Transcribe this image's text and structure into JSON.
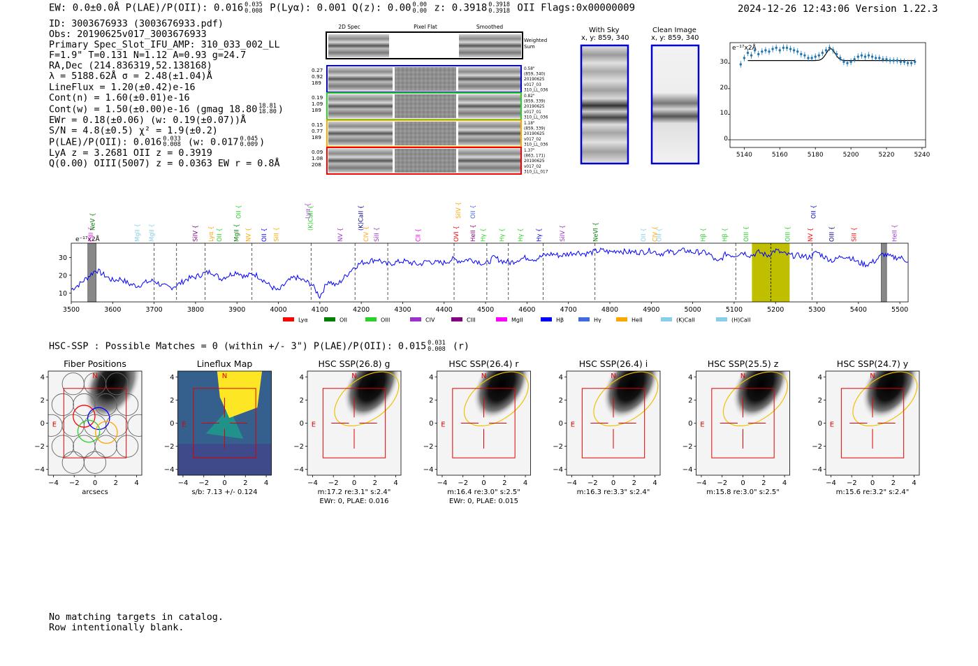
{
  "header": {
    "left": "EW: 0.0±0.0Å  P(LAE)/P(OII): 0.016",
    "plae_hi": "0.035",
    "plae_lo": "0.008",
    "plya": "P(Lyα): 0.001  Q(z): 0.00",
    "qz_hi": "0.00",
    "qz_lo": "0.00",
    "z": "z: 0.3918",
    "z_hi": "0.3918",
    "z_lo": "0.3918",
    "z_tail": "OII    Flags:0x00000009",
    "right": "2024-12-26 12:43:06  Version 1.22.3"
  },
  "info": {
    "l1": "ID: 3003676933 (3003676933.pdf)",
    "l2": "Obs: 20190625v017_3003676933",
    "l3": "Primary Spec_Slot_IFU_AMP: 310_033_002_LL",
    "l4": "F=1.9\"  T=0.131  N=1.12  A=0.93  g=24.7",
    "l5": "RA,Dec (214.836319,52.138168)",
    "l6": "λ = 5188.62Å  σ = 2.48(±1.04)Å",
    "l7": "LineFlux = 1.20(±0.42)e-16",
    "l8": "Cont(n) = 1.60(±0.01)e-16",
    "l9": "Cont(w) = 1.50(±0.00)e-16 (gmag 18.80",
    "l9_hi": "18.81",
    "l9_lo": "18.80",
    "l9_tail": ")",
    "l10": "EWr = 0.18(±0.06) (w: 0.19(±0.07))Å",
    "l11": "S/N = 4.8(±0.5)  χ² = 1.9(±0.2)",
    "l12": "P(LAE)/P(OII): 0.016",
    "l12_hi": "0.033",
    "l12_lo": "0.008",
    "l12_mid": "(w: 0.017",
    "l12_hi2": "0.045",
    "l12_lo2": "0.009",
    "l12_tail": ")",
    "l13": "LyA z = 3.2681  OII z = 0.3919",
    "l14": "Q(0.00) OIII(5007) z = 0.0363  EW r = 0.8Å"
  },
  "cutouts": {
    "col1": "2D Spec",
    "col2": "Pixel Flat",
    "col3": "Smoothed",
    "weighted": "Weighted Sum",
    "rows": [
      {
        "left": [
          "0.27",
          "0.92",
          "189"
        ],
        "right": [
          "0.58\"",
          "(859, 340)",
          "20190625",
          "v017_03",
          "310_LL_036"
        ],
        "color": "#0000ff"
      },
      {
        "left": [
          "0.19",
          "1.09",
          "189"
        ],
        "right": [
          "0.82\"",
          "(859, 339)",
          "20190625",
          "v017_01",
          "310_LL_036"
        ],
        "color": "#2ad12a"
      },
      {
        "left": [
          "0.15",
          "0.77",
          "189"
        ],
        "right": [
          "1.18\"",
          "(859, 339)",
          "20190625",
          "v017_02",
          "310_LL_036"
        ],
        "color": "#ffa500"
      },
      {
        "left": [
          "0.09",
          "1.08",
          "208"
        ],
        "right": [
          "1.37\"",
          "(863, 171)",
          "20190625",
          "v017_02",
          "310_LL_017"
        ],
        "color": "#ff0000"
      }
    ],
    "with_sky": "With Sky",
    "with_sky_xy": "x, y: 859, 340",
    "clean": "Clean Image",
    "clean_xy": "x, y: 859, 340"
  },
  "zoom_chart": {
    "type": "scatter",
    "units_label": "e⁻¹⁷x2Å",
    "x": [
      5138,
      5140,
      5142,
      5144,
      5146,
      5148,
      5150,
      5152,
      5154,
      5156,
      5158,
      5160,
      5162,
      5164,
      5166,
      5168,
      5170,
      5172,
      5174,
      5176,
      5178,
      5180,
      5182,
      5184,
      5186,
      5188,
      5190,
      5192,
      5194,
      5196,
      5198,
      5200,
      5202,
      5204,
      5206,
      5208,
      5210,
      5212,
      5214,
      5216,
      5218,
      5220,
      5222,
      5224,
      5226,
      5228,
      5230,
      5232,
      5234,
      5236
    ],
    "y": [
      29.5,
      32,
      34,
      33,
      35,
      33.5,
      34.5,
      35,
      34.5,
      35.5,
      36,
      35,
      36,
      36,
      35.5,
      35,
      34.5,
      33.5,
      33,
      32,
      32,
      32.5,
      33,
      34,
      35,
      36,
      35,
      33.5,
      32,
      30.5,
      30,
      30.5,
      31.5,
      32.5,
      33,
      32.5,
      33,
      32.5,
      32,
      32,
      31.5,
      31.5,
      31,
      31,
      31,
      30.5,
      30.5,
      30,
      30,
      30.5
    ],
    "fit_base": 31,
    "fit_peak": 35.6,
    "fit_center": 5188.6,
    "fit_sigma": 2.5,
    "xticks": [
      5140,
      5160,
      5180,
      5200,
      5220,
      5240
    ],
    "yticks": [
      0,
      10,
      20,
      30
    ],
    "xlim": [
      5132,
      5242
    ],
    "ylim": [
      -3,
      38
    ]
  },
  "spectrum": {
    "type": "line",
    "units_label": "e⁻¹⁷x2Å",
    "xlim": [
      3500,
      5520
    ],
    "ylim": [
      5,
      38
    ],
    "xticks": [
      3500,
      3600,
      3700,
      3800,
      3900,
      4000,
      4100,
      4200,
      4300,
      4400,
      4500,
      4600,
      4700,
      4800,
      4900,
      5000,
      5100,
      5200,
      5300,
      5400,
      5500
    ],
    "yticks": [
      10,
      20,
      30
    ],
    "highlight": [
      5143,
      5234
    ],
    "line_center": 5188.6,
    "masked": [
      [
        3540,
        3560
      ],
      [
        5455,
        5468
      ]
    ],
    "dashed_lines": [
      3700,
      3754,
      3823,
      3936,
      4079,
      4185,
      4264,
      4424,
      4503,
      4555,
      4639,
      4764,
      5104,
      5288
    ],
    "anchors": [
      [
        3500,
        12
      ],
      [
        3520,
        15
      ],
      [
        3540,
        19
      ],
      [
        3560,
        23
      ],
      [
        3580,
        20
      ],
      [
        3600,
        17
      ],
      [
        3620,
        18
      ],
      [
        3640,
        15
      ],
      [
        3660,
        14
      ],
      [
        3680,
        16
      ],
      [
        3700,
        17
      ],
      [
        3720,
        14
      ],
      [
        3740,
        13
      ],
      [
        3760,
        15
      ],
      [
        3780,
        18
      ],
      [
        3800,
        19
      ],
      [
        3820,
        21
      ],
      [
        3840,
        22
      ],
      [
        3860,
        18
      ],
      [
        3880,
        20
      ],
      [
        3900,
        22
      ],
      [
        3920,
        19
      ],
      [
        3940,
        21
      ],
      [
        3960,
        18
      ],
      [
        3980,
        14
      ],
      [
        4000,
        11
      ],
      [
        4020,
        16
      ],
      [
        4040,
        19
      ],
      [
        4060,
        17
      ],
      [
        4080,
        15
      ],
      [
        4100,
        8
      ],
      [
        4120,
        17
      ],
      [
        4140,
        14
      ],
      [
        4160,
        19
      ],
      [
        4180,
        24
      ],
      [
        4200,
        27
      ],
      [
        4220,
        28
      ],
      [
        4240,
        29
      ],
      [
        4260,
        26
      ],
      [
        4280,
        27
      ],
      [
        4300,
        28
      ],
      [
        4320,
        27
      ],
      [
        4340,
        26
      ],
      [
        4360,
        28
      ],
      [
        4380,
        27
      ],
      [
        4400,
        27
      ],
      [
        4420,
        29
      ],
      [
        4440,
        28
      ],
      [
        4460,
        29
      ],
      [
        4480,
        28
      ],
      [
        4500,
        26
      ],
      [
        4520,
        30
      ],
      [
        4540,
        28
      ],
      [
        4560,
        27
      ],
      [
        4580,
        29
      ],
      [
        4600,
        30
      ],
      [
        4620,
        29
      ],
      [
        4640,
        31
      ],
      [
        4660,
        32
      ],
      [
        4680,
        31
      ],
      [
        4700,
        32
      ],
      [
        4720,
        33
      ],
      [
        4740,
        32
      ],
      [
        4760,
        33
      ],
      [
        4780,
        34
      ],
      [
        4800,
        33
      ],
      [
        4820,
        34
      ],
      [
        4840,
        33
      ],
      [
        4860,
        33
      ],
      [
        4880,
        33
      ],
      [
        4900,
        34
      ],
      [
        4920,
        32
      ],
      [
        4940,
        33
      ],
      [
        4960,
        33
      ],
      [
        4980,
        34
      ],
      [
        5000,
        33
      ],
      [
        5020,
        33
      ],
      [
        5040,
        32
      ],
      [
        5060,
        27
      ],
      [
        5080,
        32
      ],
      [
        5100,
        31
      ],
      [
        5120,
        33
      ],
      [
        5140,
        31
      ],
      [
        5160,
        33
      ],
      [
        5180,
        31
      ],
      [
        5200,
        34
      ],
      [
        5220,
        32
      ],
      [
        5240,
        31
      ],
      [
        5260,
        31
      ],
      [
        5280,
        30
      ],
      [
        5300,
        33
      ],
      [
        5320,
        30
      ],
      [
        5340,
        28
      ],
      [
        5360,
        31
      ],
      [
        5380,
        30
      ],
      [
        5400,
        27
      ],
      [
        5420,
        26
      ],
      [
        5440,
        28
      ],
      [
        5460,
        32
      ],
      [
        5480,
        30
      ],
      [
        5500,
        30
      ],
      [
        5520,
        28
      ]
    ],
    "line_labels": [
      {
        "name": "CIII",
        "x": 3548,
        "color": "#ff00ff",
        "row": 2
      },
      {
        "name": "NeV",
        "x": 3552,
        "color": "#008000",
        "row": 1
      },
      {
        "name": "MgII",
        "x": 3660,
        "color": "#87ceeb",
        "row": 2
      },
      {
        "name": "MgII",
        "x": 3695,
        "color": "#87ceeb",
        "row": 2
      },
      {
        "name": "SiIV",
        "x": 3800,
        "color": "#800080",
        "row": 2
      },
      {
        "name": "Lyα",
        "x": 3838,
        "color": "#ffa500",
        "row": 2
      },
      {
        "name": "OII",
        "x": 3858,
        "color": "#2ad12a",
        "row": 2
      },
      {
        "name": "MgII",
        "x": 3900,
        "color": "#008000",
        "row": 2
      },
      {
        "name": "OII",
        "x": 3905,
        "color": "#2ad12a",
        "row": 0
      },
      {
        "name": "NV",
        "x": 3928,
        "color": "#ffa500",
        "row": 2
      },
      {
        "name": "OII",
        "x": 3966,
        "color": "#0000ff",
        "row": 2
      },
      {
        "name": "SiII",
        "x": 3996,
        "color": "#ffa500",
        "row": 2
      },
      {
        "name": "Lyα",
        "x": 4072,
        "color": "#9933cc",
        "row": 0
      },
      {
        "name": "(K)CaII",
        "x": 4078,
        "color": "#2ad12a",
        "row": 1
      },
      {
        "name": "NV",
        "x": 4150,
        "color": "#9933cc",
        "row": 2
      },
      {
        "name": "(K)CaII",
        "x": 4200,
        "color": "#00008b",
        "row": 1
      },
      {
        "name": "CIV",
        "x": 4212,
        "color": "#ffa500",
        "row": 2
      },
      {
        "name": "SiII",
        "x": 4238,
        "color": "#9933cc",
        "row": 2
      },
      {
        "name": "CII",
        "x": 4338,
        "color": "#ff00ff",
        "row": 2
      },
      {
        "name": "OVI",
        "x": 4430,
        "color": "#ff0000",
        "row": 2
      },
      {
        "name": "SiIV",
        "x": 4435,
        "color": "#ffa500",
        "row": 0
      },
      {
        "name": "OII",
        "x": 4470,
        "color": "#4169e1",
        "row": 0
      },
      {
        "name": "HeII",
        "x": 4470,
        "color": "#800080",
        "row": 2
      },
      {
        "name": "Hγ",
        "x": 4495,
        "color": "#2ad12a",
        "row": 2
      },
      {
        "name": "Hγ",
        "x": 4540,
        "color": "#2ad12a",
        "row": 2
      },
      {
        "name": "Hγ",
        "x": 4585,
        "color": "#2ad12a",
        "row": 2
      },
      {
        "name": "Hγ",
        "x": 4630,
        "color": "#0000cd",
        "row": 2
      },
      {
        "name": "SiIV",
        "x": 4686,
        "color": "#9933cc",
        "row": 2
      },
      {
        "name": "NeVI",
        "x": 4766,
        "color": "#008000",
        "row": 2
      },
      {
        "name": "OII",
        "x": 4882,
        "color": "#87ceeb",
        "row": 2
      },
      {
        "name": "CIV",
        "x": 4910,
        "color": "#ffa500",
        "row": 2
      },
      {
        "name": "OII",
        "x": 4920,
        "color": "#87ceeb",
        "row": 2
      },
      {
        "name": "Hβ",
        "x": 5026,
        "color": "#2ad12a",
        "row": 2
      },
      {
        "name": "Hβ",
        "x": 5078,
        "color": "#2ad12a",
        "row": 2
      },
      {
        "name": "OIII",
        "x": 5130,
        "color": "#2ad12a",
        "row": 2
      },
      {
        "name": "OIII",
        "x": 5230,
        "color": "#2ad12a",
        "row": 2
      },
      {
        "name": "NV",
        "x": 5285,
        "color": "#ff0000",
        "row": 2
      },
      {
        "name": "OII",
        "x": 5292,
        "color": "#0000cd",
        "row": 0
      },
      {
        "name": "OIII",
        "x": 5336,
        "color": "#00008b",
        "row": 2
      },
      {
        "name": "SiII",
        "x": 5390,
        "color": "#ff0000",
        "row": 2
      },
      {
        "name": "HeII",
        "x": 5488,
        "color": "#9933cc",
        "row": 2
      }
    ],
    "legend": [
      {
        "label": "Lyα",
        "color": "#ff0000"
      },
      {
        "label": "OII",
        "color": "#008000"
      },
      {
        "label": "OIII",
        "color": "#2ad12a"
      },
      {
        "label": "CIV",
        "color": "#9933cc"
      },
      {
        "label": "CIII",
        "color": "#800080"
      },
      {
        "label": "MgII",
        "color": "#ff00ff"
      },
      {
        "label": "Hβ",
        "color": "#0000ff"
      },
      {
        "label": "Hγ",
        "color": "#4169e1"
      },
      {
        "label": "HeII",
        "color": "#ffa500"
      },
      {
        "label": "(K)CaII",
        "color": "#87ceeb"
      },
      {
        "label": "(H)CaII",
        "color": "#87ceeb"
      }
    ]
  },
  "hsc": {
    "line": "HSC-SSP : Possible Matches = 0 (within +/- 3\")  P(LAE)/P(OII): 0.015",
    "hi": "0.031",
    "lo": "0.008",
    "tail": "(r)",
    "ticks": [
      "−4",
      "−2",
      "0",
      "2",
      "4"
    ],
    "panels": [
      {
        "title": "Fiber Positions",
        "kind": "fiber",
        "cap1": "arcsecs",
        "cap2": ""
      },
      {
        "title": "Lineflux Map",
        "kind": "flux",
        "cap1": "s/b: 7.13 +/- 0.124",
        "cap2": ""
      },
      {
        "title": "HSC SSP(26.8) g",
        "kind": "img",
        "cap1": "m:17.2  re:3.1\"  s:2.4\"",
        "cap2": "EWr: 0, PLAE: 0.016"
      },
      {
        "title": "HSC SSP(26.4) r",
        "kind": "img",
        "cap1": "m:16.4  re:3.0\"  s:2.5\"",
        "cap2": "EWr: 0, PLAE: 0.015"
      },
      {
        "title": "HSC SSP(26.4) i",
        "kind": "img",
        "cap1": "m:16.3  re:3.3\"  s:2.4\"",
        "cap2": ""
      },
      {
        "title": "HSC SSP(25.5) z",
        "kind": "img",
        "cap1": "m:15.8  re:3.0\"  s:2.5\"",
        "cap2": ""
      },
      {
        "title": "HSC SSP(24.7) y",
        "kind": "img",
        "cap1": "m:15.6  re:3.2\"  s:2.4\"",
        "cap2": ""
      }
    ],
    "north": "N",
    "east": "E"
  },
  "footer": {
    "l1": "No matching targets in catalog.",
    "l2": "Row intentionally blank."
  }
}
